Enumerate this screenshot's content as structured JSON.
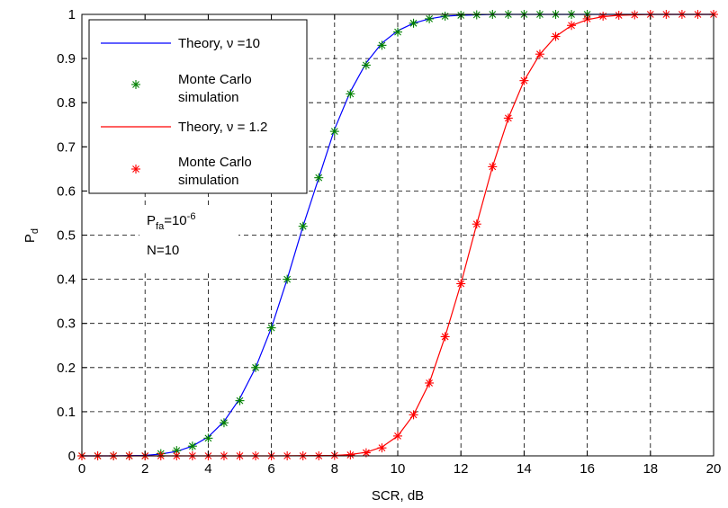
{
  "chart_data": {
    "type": "line",
    "xlabel": "SCR, dB",
    "ylabel_main": "P",
    "ylabel_sub": "d",
    "xlim": [
      0,
      20
    ],
    "ylim": [
      0,
      1
    ],
    "x_ticks": [
      0,
      2,
      4,
      6,
      8,
      10,
      12,
      14,
      16,
      18,
      20
    ],
    "y_ticks": [
      0,
      0.1,
      0.2,
      0.3,
      0.4,
      0.5,
      0.6,
      0.7,
      0.8,
      0.9,
      1
    ],
    "x_tick_labels": [
      "0",
      "2",
      "4",
      "6",
      "8",
      "10",
      "12",
      "14",
      "16",
      "18",
      "20"
    ],
    "y_tick_labels": [
      "0",
      "0.1",
      "0.2",
      "0.3",
      "0.4",
      "0.5",
      "0.6",
      "0.7",
      "0.8",
      "0.9",
      "1"
    ],
    "grid": true,
    "legend_position": "top-left",
    "series": [
      {
        "name": "Theory, ν =10",
        "kind": "line",
        "color": "#0000ff",
        "x": [
          0,
          1,
          2,
          2.5,
          3,
          3.5,
          4,
          4.5,
          5,
          5.5,
          6,
          6.5,
          7,
          7.5,
          8,
          8.5,
          9,
          9.5,
          10,
          10.5,
          11,
          11.5,
          12,
          13,
          14,
          15,
          16,
          17,
          18,
          19,
          20
        ],
        "y": [
          0,
          0,
          0.001,
          0.004,
          0.01,
          0.022,
          0.043,
          0.078,
          0.13,
          0.2,
          0.29,
          0.4,
          0.52,
          0.63,
          0.74,
          0.825,
          0.89,
          0.935,
          0.963,
          0.98,
          0.99,
          0.996,
          0.998,
          1,
          1,
          1,
          1,
          1,
          1,
          1,
          1
        ]
      },
      {
        "name": "Monte Carlo simulation",
        "kind": "marker",
        "color": "#008000",
        "x": [
          0,
          0.5,
          1,
          1.5,
          2,
          2.5,
          3,
          3.5,
          4,
          4.5,
          5,
          5.5,
          6,
          6.5,
          7,
          7.5,
          8,
          8.5,
          9,
          9.5,
          10,
          10.5,
          11,
          11.5,
          12,
          12.5,
          13,
          13.5,
          14,
          14.5,
          15,
          15.5,
          16
        ],
        "y": [
          0,
          0,
          0,
          0,
          0,
          0.005,
          0.012,
          0.022,
          0.04,
          0.075,
          0.125,
          0.2,
          0.29,
          0.4,
          0.52,
          0.63,
          0.735,
          0.82,
          0.885,
          0.93,
          0.96,
          0.98,
          0.99,
          0.996,
          0.998,
          0.999,
          1,
          1,
          1,
          1,
          1,
          1,
          1
        ]
      },
      {
        "name": "Theory, ν = 1.2",
        "kind": "line",
        "color": "#ff0000",
        "x": [
          0,
          2,
          4,
          6,
          8,
          8.5,
          9,
          9.5,
          10,
          10.5,
          11,
          11.5,
          12,
          12.5,
          13,
          13.5,
          14,
          14.5,
          15,
          15.5,
          16,
          16.5,
          17,
          18,
          19,
          20
        ],
        "y": [
          0,
          0,
          0,
          0,
          0.001,
          0.003,
          0.008,
          0.02,
          0.045,
          0.093,
          0.165,
          0.27,
          0.39,
          0.525,
          0.655,
          0.765,
          0.85,
          0.91,
          0.95,
          0.975,
          0.988,
          0.995,
          0.998,
          1,
          1,
          1
        ]
      },
      {
        "name": "Monte Carlo simulation",
        "kind": "marker",
        "color": "#ff0000",
        "x": [
          0,
          0.5,
          1,
          1.5,
          2,
          2.5,
          3,
          3.5,
          4,
          4.5,
          5,
          5.5,
          6,
          6.5,
          7,
          7.5,
          8,
          8.5,
          9,
          9.5,
          10,
          10.5,
          11,
          11.5,
          12,
          12.5,
          13,
          13.5,
          14,
          14.5,
          15,
          15.5,
          16,
          16.5,
          17,
          17.5,
          18,
          18.5,
          19,
          19.5,
          20
        ],
        "y": [
          0,
          0,
          0,
          0,
          0,
          0,
          0,
          0,
          0,
          0,
          0,
          0,
          0,
          0,
          0,
          0,
          0.001,
          0.002,
          0.007,
          0.018,
          0.045,
          0.093,
          0.165,
          0.27,
          0.39,
          0.525,
          0.655,
          0.765,
          0.85,
          0.91,
          0.95,
          0.975,
          0.99,
          0.996,
          0.998,
          0.999,
          1,
          1,
          1,
          1,
          1
        ]
      }
    ],
    "legend": [
      {
        "line1": "Theory, ν =10",
        "line2": "",
        "kind": "line",
        "color": "#0000ff"
      },
      {
        "line1": "Monte Carlo",
        "line2": "simulation",
        "kind": "marker",
        "color": "#008000"
      },
      {
        "line1": "Theory, ν = 1.2",
        "line2": "",
        "kind": "line",
        "color": "#ff0000"
      },
      {
        "line1": "Monte Carlo",
        "line2": "simulation",
        "kind": "marker",
        "color": "#ff0000"
      }
    ],
    "annotation": {
      "pfa_main": "P",
      "pfa_sub": "fa",
      "pfa_eq": "=10",
      "pfa_sup": "-6",
      "n_text": "N=10"
    }
  }
}
